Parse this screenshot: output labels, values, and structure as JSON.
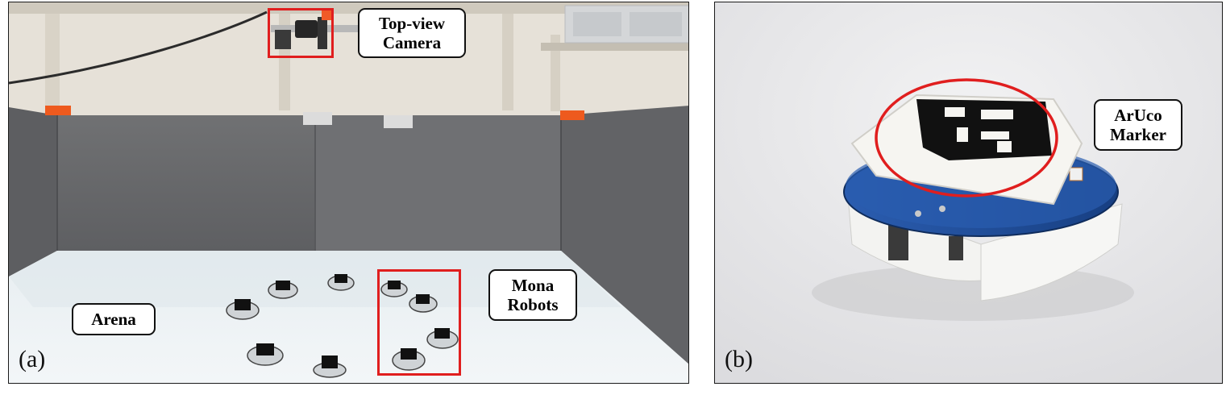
{
  "panel_a": {
    "label": "(a)",
    "callouts": {
      "camera": [
        "Top-view",
        "Camera"
      ],
      "robots": [
        "Mona",
        "Robots"
      ],
      "arena": "Arena"
    }
  },
  "panel_b": {
    "label": "(b)",
    "callouts": {
      "marker": [
        "ArUco",
        "Marker"
      ]
    }
  },
  "colors": {
    "highlight_red": "#e01e1e",
    "arena_wall": "#6d6e70",
    "arena_floor": "#eef2f4",
    "pcb_blue": "#1f4f9c",
    "chassis_white": "#f4f4f2",
    "marker_black": "#111111"
  }
}
